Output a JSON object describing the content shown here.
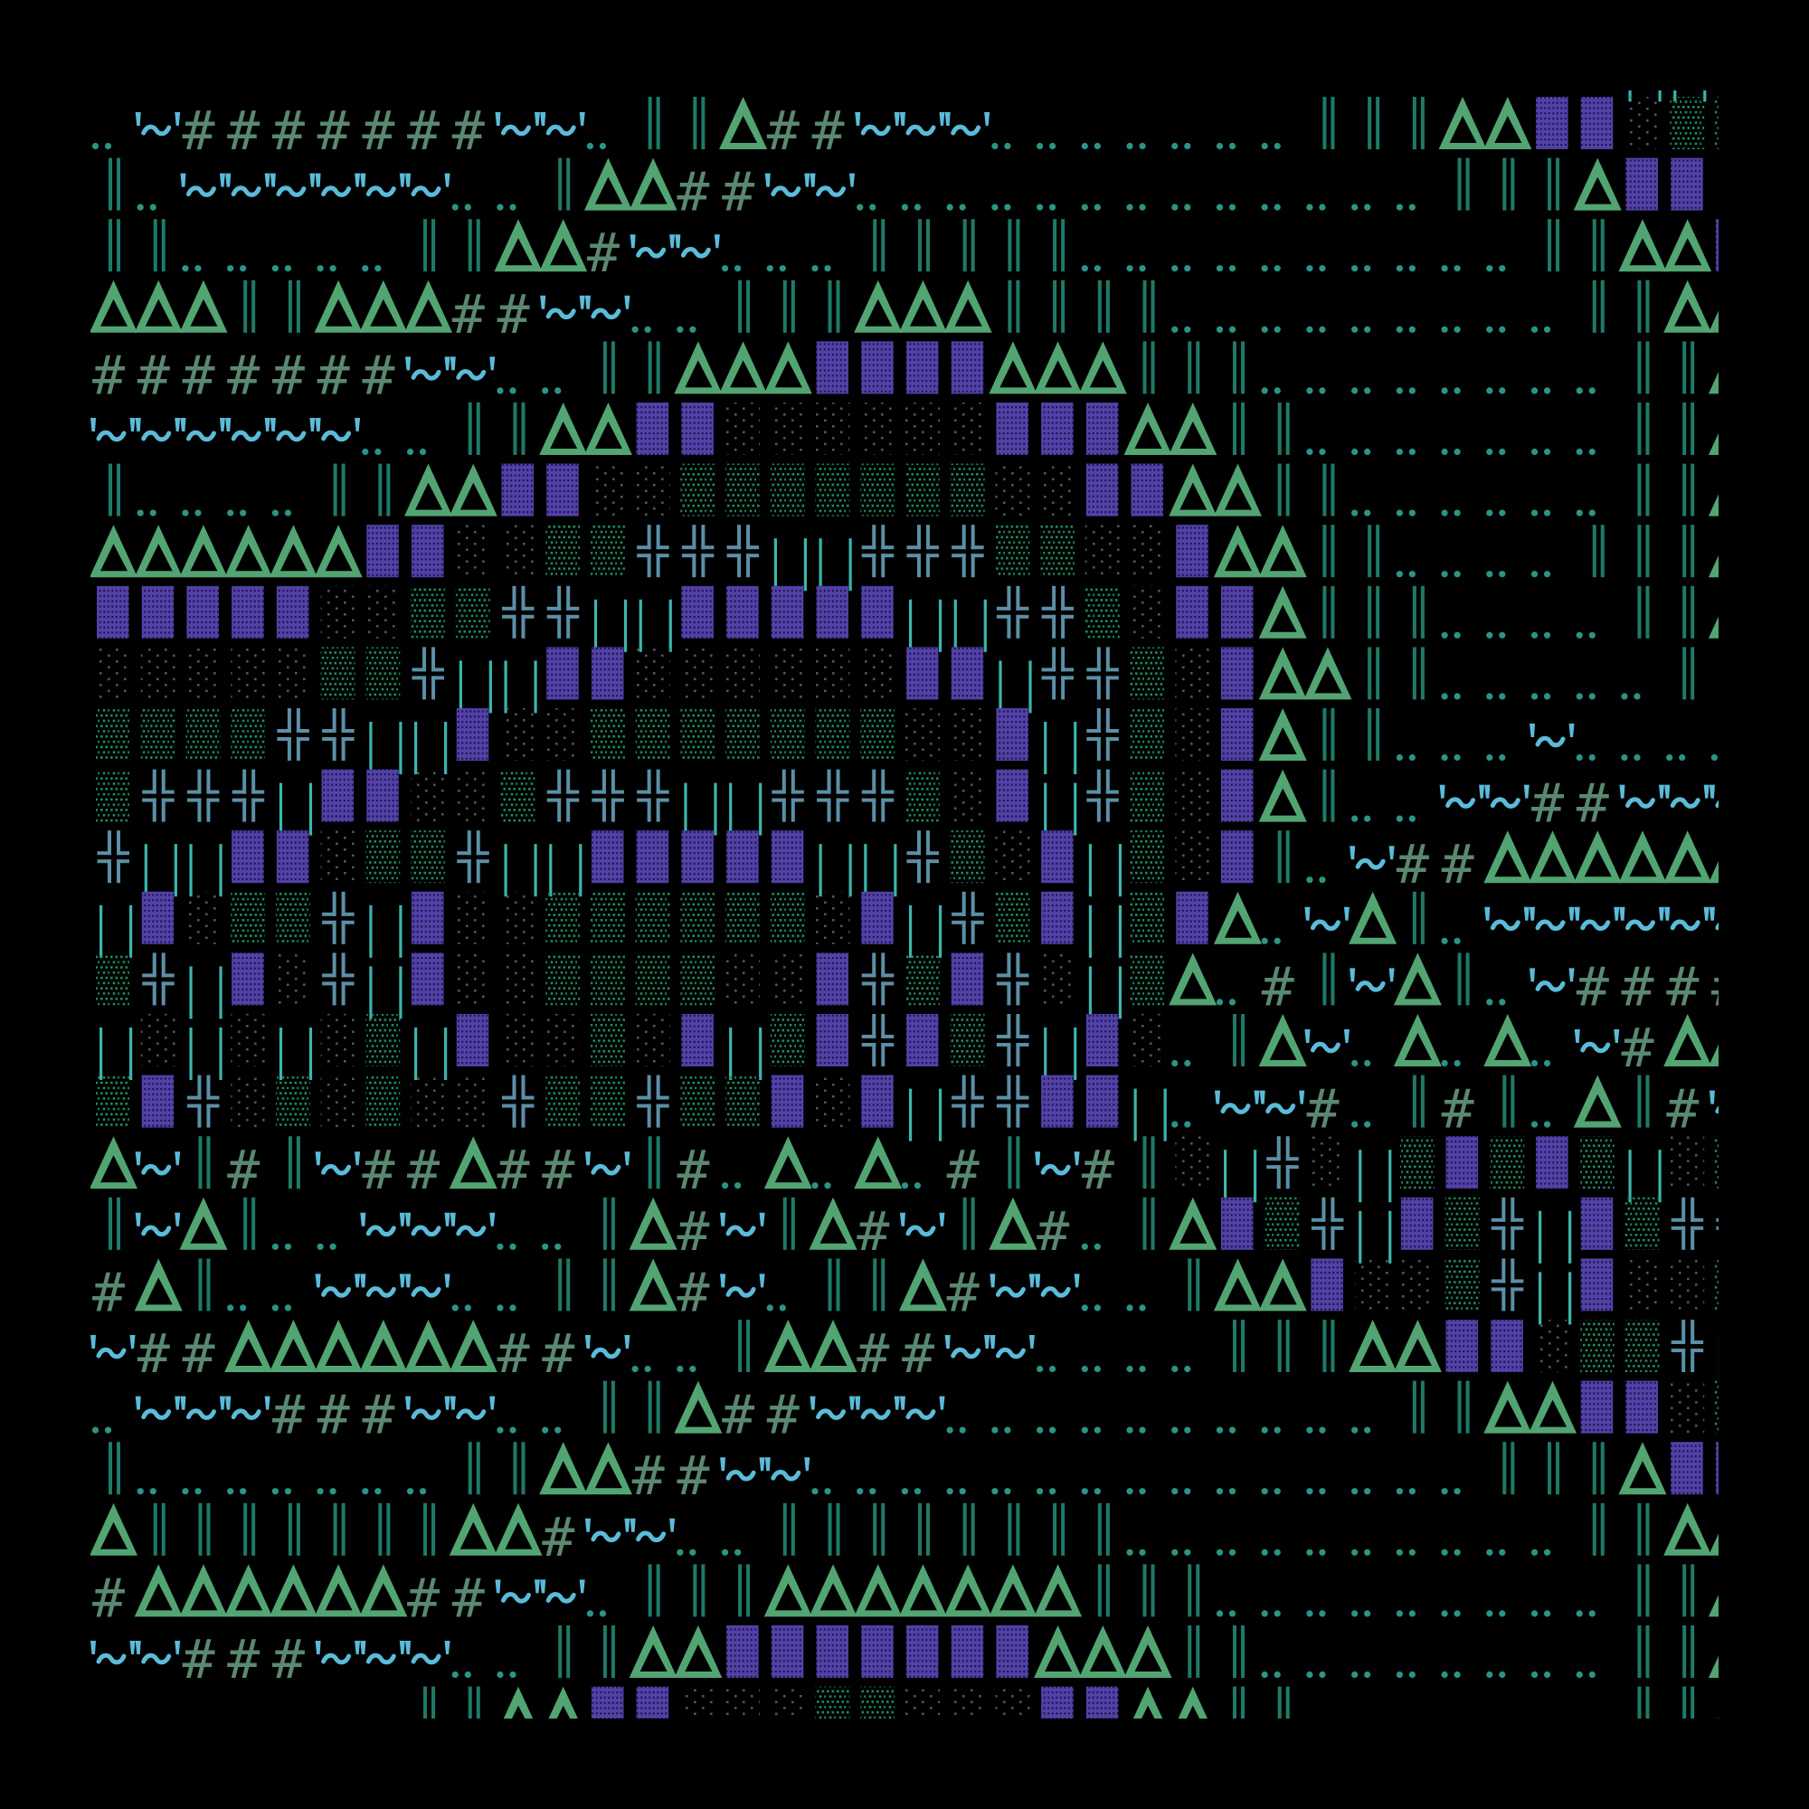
{
  "art": {
    "columns": 37,
    "rows": [
      "              ‥       ‥‥          ║║ ",
      "‥~#######~~‥‖‖Δ##~~~‥‥‥‥‥‥‥‖‖‖ΔΔ▓▓░▒▒",
      "‖‥~~~~~~‥‥‖ΔΔ##~~‥‥‥‥‥‥‥‥‥‥‥‥‥‖‖‖Δ▓▓░",
      "‖‖‥‥‥‥‥‖‖ΔΔ#~~‥‥‥‖‖‖‖‖‥‥‥‥‥‥‥‥‥‥‖‖ΔΔ▓",
      "ΔΔΔ‖‖ΔΔΔ##~~‥‥‖‖‖ΔΔΔ‖‖‖‖‥‥‥‥‥‥‥‥‥‖‖ΔΔ",
      "#######~~‥‥‖‖ΔΔΔ▓▓▓▓ΔΔΔ‖‖‖‥‥‥‥‥‥‥‥‖‖Δ",
      "~~~~~~‥‥‖‖ΔΔ▓▓░░░░░░▓▓▓ΔΔ‖‖‥‥‥‥‥‥‥‖‖Δ",
      "‖‥‥‥‥‖‖ΔΔ▓▓░░▒▒▒▒▒▒▒░░▓▓ΔΔ‖‖‥‥‥‥‥‥‖‖Δ",
      "ΔΔΔΔΔΔ▓▓░░▒▒╬╬╬║║╬╬╬▒▒░░▓ΔΔ‖‖‥‥‥‥‖‖‖Δ",
      "▓▓▓▓▓░░▒▒╬╬║║▓▓▓▓▓║║╬╬▒░▓▓Δ‖‖‖‥‥‥‥‖‖Δ",
      "░░░░░▒▒╬║║▓▓░░░░░░▓▓║╬╬▒░▓ΔΔ‖‖‥‥‥‥‥‖ ",
      "▒▒▒▒╬╬║║▓░░▒▒▒▒▒▒▒░░▓║╬▒░▓Δ‖‖‥‥‥~‥‥‥‥",
      "▒╬╬╬║▓▓░░▒╬╬╬║║╬╬╬▒░▓║╬▒░▓Δ‖‥‥~~##~~~",
      "╬║║▓▓░▒▒╬║║▓▓▓▓▓║║╬▒░▓║▒░▓‖‥~##ΔΔΔΔΔΔ",
      "║▓░▒▒╬║▓░░▒▒▒▒▒▒░▓║╬▒▓║▒▓Δ‥~Δ‖‥~~~~~~",
      "▒╬║▓░╬║▓░░▒▒▒▒░░▓╬▒▓╬░║▒Δ‥#‖~Δ‖‥~####",
      "║░║░║░▒║▓░░▒░▓║▒▓╬▓▒╬║▓░‥‖Δ~‥Δ‥Δ‥~#ΔΔ",
      "▒▓╬░▒░▒░░╬▒▒╬▒▒▓░▓║╬╬▓▓║‥~~#‥‖#‖‥Δ‖#~",
      "Δ~‖#‖~##Δ##~‖#‥Δ‥Δ‥#‖~#‖░║╬░║▒▓▒▓▒║░▒",
      "‖~Δ‖‥‥~~~‥‥‖Δ#~‖Δ#~‖Δ#‥‖Δ▓▒╬║▓▒╬║▓▒╬╬",
      "#Δ‖‥‥~~~‥‥‖‖Δ#~‥‖‖Δ#~~‥‥‖ΔΔ▓░░▒╬║▓░░▒",
      "~##ΔΔΔΔΔΔ##~‥‥‖ΔΔ##~~‥‥‥‥‖‖‖ΔΔ▓▓░▒▒╬║",
      "‥~~~###~~‥‥‖‖Δ##~~~‥‥‥‥‥‥‥‥‥‥‖‖ΔΔ▓▓░▒",
      "‖‥‥‥‥‥‥‥‖‖ΔΔ##~~‥‥‥‥‥‥‥‥‥‥‥‥‥‥‥‖‖‖Δ▓▓",
      "Δ‖‖‖‖‖‖‖ΔΔ#~~‥‥‖‖‖‖‖‖‖‖‥‥‥‥‥‥‥‥‥‥‖‖ΔΔ",
      "#ΔΔΔΔΔΔ##~~‥‖‖‖ΔΔΔΔΔΔΔ‖‖‖‥‥‥‥‥‥‥‥‥‖‖Δ",
      "~~###~~~‥‥‖‖ΔΔ▓▓▓▓▓▓▓ΔΔΔ‖‖‥‥‥‥‥‥‥‥‖‖Δ",
      "       ‖‖ΔΔ▓▓░░░▒▒░░░▓▓ΔΔ‖‖       ‖‖Δ"
    ]
  },
  "colors": {
    "background": "#000000",
    "delta": "#52a572",
    "hash": "#5a8870",
    "double_bar": "#1e7a68",
    "cyan_bars": "#3cb5ad",
    "cross": "#5b8fa6",
    "dense_block": "#5241a8",
    "medium_shade": "#1e8c5c",
    "light_shade": "#475a58",
    "dots": "#2a9585",
    "wave": "#5bbbd9"
  }
}
